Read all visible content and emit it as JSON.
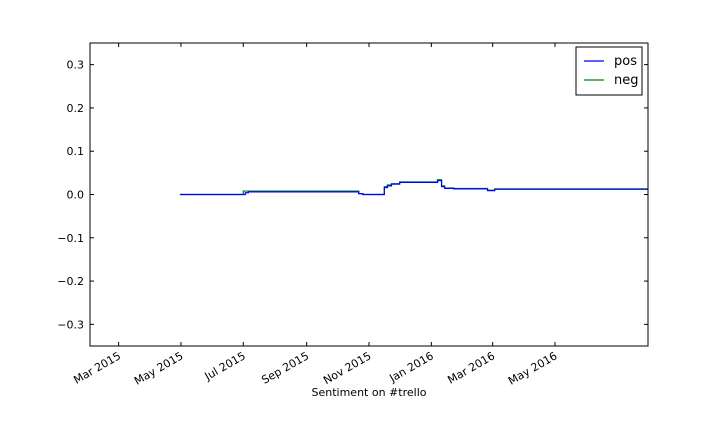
{
  "chart_data": {
    "type": "line",
    "title": "",
    "xlabel": "Sentiment on #trello",
    "ylabel": "",
    "xlim": [
      "2015-02-01",
      "2016-07-31"
    ],
    "ylim": [
      -0.35,
      0.35
    ],
    "x_ticks": [
      {
        "date": "2015-03-01",
        "label": "Mar 2015"
      },
      {
        "date": "2015-05-01",
        "label": "May 2015"
      },
      {
        "date": "2015-07-01",
        "label": "Jul 2015"
      },
      {
        "date": "2015-09-01",
        "label": "Sep 2015"
      },
      {
        "date": "2015-11-01",
        "label": "Nov 2015"
      },
      {
        "date": "2016-01-01",
        "label": "Jan 2016"
      },
      {
        "date": "2016-03-01",
        "label": "Mar 2016"
      },
      {
        "date": "2016-05-01",
        "label": "May 2016"
      }
    ],
    "y_ticks": [
      {
        "value": 0.3,
        "label": "0.3"
      },
      {
        "value": 0.2,
        "label": "0.2"
      },
      {
        "value": 0.1,
        "label": "0.1"
      },
      {
        "value": 0.0,
        "label": "0.0"
      },
      {
        "value": -0.1,
        "label": "−0.1"
      },
      {
        "value": -0.2,
        "label": "−0.2"
      },
      {
        "value": -0.3,
        "label": "−0.3"
      }
    ],
    "grid": false,
    "legend_position": "top-right",
    "step": true,
    "series": [
      {
        "name": "pos",
        "color": "#0000ff",
        "x": [
          "2015-04-30",
          "2015-07-03",
          "2015-07-06",
          "2015-10-22",
          "2015-10-26",
          "2015-11-16",
          "2015-11-19",
          "2015-11-23",
          "2015-12-01",
          "2016-01-07",
          "2016-01-11",
          "2016-01-14",
          "2016-01-23",
          "2016-02-25",
          "2016-03-03",
          "2016-07-31"
        ],
        "y": [
          0.0,
          0.004,
          0.006,
          0.002,
          0.0,
          0.016,
          0.02,
          0.024,
          0.028,
          0.032,
          0.018,
          0.014,
          0.013,
          0.009,
          0.012,
          0.012
        ]
      },
      {
        "name": "neg",
        "color": "#008000",
        "x": [
          "2015-04-30",
          "2015-07-01",
          "2015-10-22",
          "2015-10-26",
          "2015-11-16",
          "2015-11-19",
          "2015-11-23",
          "2015-12-01",
          "2016-01-07",
          "2016-01-11",
          "2016-01-14",
          "2016-01-23",
          "2016-02-25",
          "2016-03-03",
          "2016-07-31"
        ],
        "y": [
          0.0,
          0.008,
          0.002,
          0.0,
          0.018,
          0.022,
          0.025,
          0.029,
          0.034,
          0.02,
          0.015,
          0.014,
          0.01,
          0.013,
          0.013
        ]
      }
    ]
  }
}
